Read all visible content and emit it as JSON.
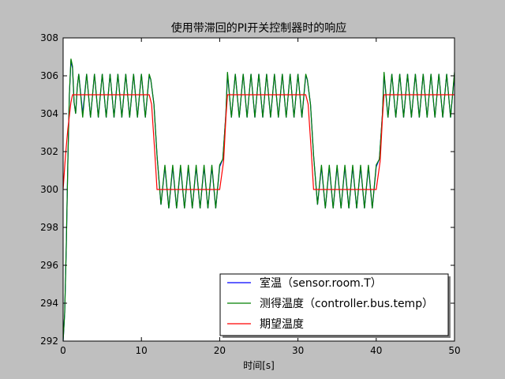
{
  "chart_data": {
    "type": "line",
    "title": "使用带滞回的PI开关控制器时的响应",
    "xlabel": "时间[s]",
    "ylabel": "",
    "xlim": [
      0,
      50
    ],
    "ylim": [
      292,
      308
    ],
    "xticks": [
      "0",
      "10",
      "20",
      "30",
      "40",
      "50"
    ],
    "yticks": [
      "292",
      "294",
      "296",
      "298",
      "300",
      "302",
      "304",
      "306",
      "308"
    ],
    "grid": false,
    "legend_position": "lower-right",
    "series": [
      {
        "name": "室温（sensor.room.T）",
        "color": "#0000ff",
        "x": [
          0,
          0.2,
          0.4,
          0.6,
          0.8,
          1.0,
          1.2,
          1.4,
          1.6,
          1.8,
          2.0,
          2.5,
          3.0,
          3.5,
          4.0,
          4.5,
          5.0,
          5.5,
          6.0,
          6.5,
          7.0,
          7.5,
          8.0,
          8.5,
          9.0,
          9.5,
          10.0,
          10.5,
          11.0,
          11.2,
          11.6,
          12.0,
          12.5,
          13.0,
          13.5,
          14.0,
          14.5,
          15.0,
          15.5,
          16.0,
          16.5,
          17.0,
          17.5,
          18.0,
          18.5,
          19.0,
          19.5,
          20.0,
          20.4,
          20.8,
          21.0,
          21.5,
          22.0,
          22.5,
          23.0,
          23.5,
          24.0,
          24.5,
          25.0,
          25.5,
          26.0,
          26.5,
          27.0,
          27.5,
          28.0,
          28.5,
          29.0,
          29.5,
          30.0,
          30.5,
          31.0,
          31.2,
          31.6,
          32.0,
          32.5,
          33.0,
          33.5,
          34.0,
          34.5,
          35.0,
          35.5,
          36.0,
          36.5,
          37.0,
          37.5,
          38.0,
          38.5,
          39.0,
          39.5,
          40.0,
          40.4,
          40.8,
          41.0,
          41.5,
          42.0,
          42.5,
          43.0,
          43.5,
          44.0,
          44.5,
          45.0,
          45.5,
          46.0,
          46.5,
          47.0,
          47.5,
          48.0,
          48.5,
          49.0,
          49.5,
          50.0
        ],
        "y": [
          292.0,
          293.5,
          297.0,
          301.5,
          305.0,
          306.8,
          306.4,
          304.6,
          304.0,
          305.4,
          306.1,
          304.0,
          306.1,
          303.8,
          306.1,
          303.8,
          306.1,
          303.8,
          306.1,
          303.8,
          306.1,
          303.8,
          306.1,
          303.8,
          306.1,
          303.8,
          306.1,
          303.8,
          306.0,
          305.8,
          304.5,
          301.8,
          299.2,
          301.2,
          299.0,
          301.2,
          299.0,
          301.2,
          299.0,
          301.2,
          299.0,
          301.2,
          299.0,
          301.2,
          299.0,
          301.2,
          299.0,
          301.2,
          301.6,
          304.0,
          306.1,
          303.8,
          306.1,
          303.8,
          306.1,
          303.8,
          306.1,
          303.8,
          306.1,
          303.8,
          306.1,
          303.8,
          306.1,
          303.8,
          306.1,
          303.8,
          306.1,
          303.8,
          306.1,
          303.8,
          306.0,
          305.8,
          304.5,
          301.8,
          299.2,
          301.2,
          299.0,
          301.2,
          299.0,
          301.2,
          299.0,
          301.2,
          299.0,
          301.2,
          299.0,
          301.2,
          299.0,
          301.2,
          299.0,
          301.2,
          301.6,
          304.0,
          306.1,
          303.8,
          306.1,
          303.8,
          306.1,
          303.8,
          306.1,
          303.8,
          306.1,
          303.8,
          306.1,
          303.8,
          306.1,
          303.8,
          306.1,
          303.8,
          306.1,
          303.8,
          306.1
        ]
      },
      {
        "name": "测得温度（controller.bus.temp）",
        "color": "#007f00",
        "x": [
          0,
          0.2,
          0.4,
          0.6,
          0.8,
          1.0,
          1.2,
          1.4,
          1.6,
          1.8,
          2.0,
          2.5,
          3.0,
          3.5,
          4.0,
          4.5,
          5.0,
          5.5,
          6.0,
          6.5,
          7.0,
          7.5,
          8.0,
          8.5,
          9.0,
          9.5,
          10.0,
          10.5,
          11.0,
          11.2,
          11.6,
          12.0,
          12.5,
          13.0,
          13.5,
          14.0,
          14.5,
          15.0,
          15.5,
          16.0,
          16.5,
          17.0,
          17.5,
          18.0,
          18.5,
          19.0,
          19.5,
          20.0,
          20.4,
          20.8,
          21.0,
          21.5,
          22.0,
          22.5,
          23.0,
          23.5,
          24.0,
          24.5,
          25.0,
          25.5,
          26.0,
          26.5,
          27.0,
          27.5,
          28.0,
          28.5,
          29.0,
          29.5,
          30.0,
          30.5,
          31.0,
          31.2,
          31.6,
          32.0,
          32.5,
          33.0,
          33.5,
          34.0,
          34.5,
          35.0,
          35.5,
          36.0,
          36.5,
          37.0,
          37.5,
          38.0,
          38.5,
          39.0,
          39.5,
          40.0,
          40.4,
          40.8,
          41.0,
          41.5,
          42.0,
          42.5,
          43.0,
          43.5,
          44.0,
          44.5,
          45.0,
          45.5,
          46.0,
          46.5,
          47.0,
          47.5,
          48.0,
          48.5,
          49.0,
          49.5,
          50.0
        ],
        "y": [
          292.0,
          293.5,
          297.0,
          301.5,
          305.0,
          306.9,
          306.5,
          304.6,
          304.0,
          305.4,
          306.1,
          303.8,
          306.1,
          303.8,
          306.1,
          303.8,
          306.1,
          303.8,
          306.1,
          303.8,
          306.1,
          303.8,
          306.1,
          303.8,
          306.1,
          303.8,
          306.1,
          303.8,
          306.1,
          305.8,
          304.5,
          301.8,
          299.2,
          301.3,
          299.0,
          301.3,
          299.0,
          301.3,
          299.0,
          301.3,
          299.0,
          301.3,
          299.0,
          301.3,
          299.0,
          301.3,
          299.0,
          301.3,
          301.6,
          304.0,
          306.2,
          303.8,
          306.1,
          303.8,
          306.1,
          303.8,
          306.1,
          303.8,
          306.1,
          303.8,
          306.1,
          303.8,
          306.1,
          303.8,
          306.1,
          303.8,
          306.1,
          303.8,
          306.1,
          303.8,
          306.1,
          305.8,
          304.5,
          301.8,
          299.2,
          301.3,
          299.0,
          301.3,
          299.0,
          301.3,
          299.0,
          301.3,
          299.0,
          301.3,
          299.0,
          301.3,
          299.0,
          301.3,
          299.0,
          301.3,
          301.6,
          304.0,
          306.2,
          303.8,
          306.1,
          303.8,
          306.1,
          303.8,
          306.1,
          303.8,
          306.1,
          303.8,
          306.1,
          303.8,
          306.1,
          303.8,
          306.1,
          303.8,
          306.1,
          303.8,
          306.2
        ]
      },
      {
        "name": "期望温度",
        "color": "#ff0000",
        "x": [
          0,
          0.3,
          0.6,
          1.0,
          1.2,
          11.0,
          11.3,
          11.7,
          12.0,
          20.0,
          20.5,
          20.8,
          21.0,
          31.0,
          31.3,
          31.7,
          32.0,
          40.0,
          40.5,
          40.8,
          41.0,
          50.0
        ],
        "y": [
          300.0,
          301.8,
          303.2,
          304.6,
          305.0,
          305.0,
          304.5,
          302.0,
          300.0,
          300.0,
          301.5,
          303.8,
          305.0,
          305.0,
          304.5,
          302.0,
          300.0,
          300.0,
          301.5,
          303.8,
          305.0,
          305.0
        ]
      }
    ]
  }
}
